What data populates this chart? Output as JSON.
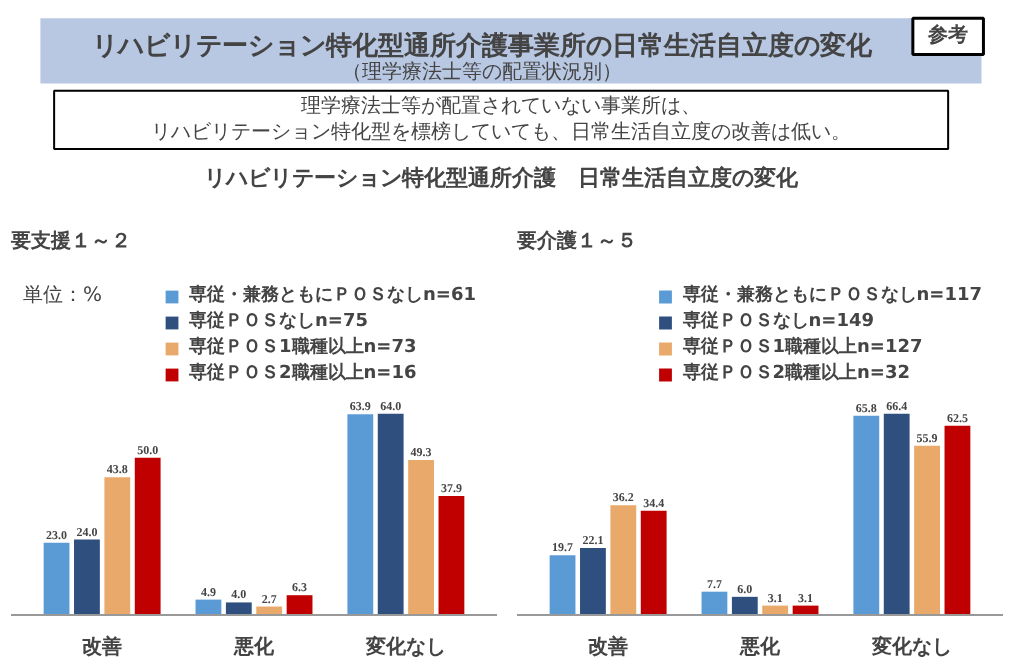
{
  "chart_data": [
    {
      "type": "other",
      "title": "リハビリテーション特化型通所介護事業所の日常生活自立度の変化",
      "subtitle": "（理学療法士等の配置状況別）",
      "annotations": [
        "参考",
        "理学療法士等が配置されていない事業所は、",
        "リハビリテーション特化型を標榜していても、日常生活自立度の改善は低い。",
        "リハビリテーション特化型通所介護　日常生活自立度の変化"
      ]
    },
    {
      "type": "bar",
      "title": "要支援１～２",
      "annotations": [
        "単位：%"
      ],
      "categories": [
        "改善",
        "悪化",
        "変化なし"
      ],
      "legend": "top",
      "series": [
        {
          "name": "専従・兼務ともにＰＯＳなしn=61",
          "color": "#5b9bd5",
          "values": [
            23.0,
            4.9,
            63.9
          ],
          "value_labels": [
            "23.0",
            "4.9",
            "63.9"
          ]
        },
        {
          "name": "専従ＰＯＳなしn=75",
          "color": "#2f4f7f",
          "values": [
            24.0,
            4.0,
            64.0
          ],
          "value_labels": [
            "24.0",
            "4.0",
            "64.0"
          ]
        },
        {
          "name": "専従ＰＯＳ1職種以上n=73",
          "color": "#e8a96a",
          "values": [
            43.8,
            2.7,
            49.3
          ],
          "value_labels": [
            "43.8",
            "2.7",
            "49.3"
          ]
        },
        {
          "name": "専従ＰＯＳ2職種以上n=16",
          "color": "#c00000",
          "values": [
            50.0,
            6.3,
            37.9
          ],
          "value_labels": [
            "50.0",
            "6.3",
            "37.9"
          ]
        }
      ]
    },
    {
      "type": "bar",
      "title": "要介護１～５",
      "categories": [
        "改善",
        "悪化",
        "変化なし"
      ],
      "legend": "top",
      "series": [
        {
          "name": "専従・兼務ともにＰＯＳなしn=117",
          "color": "#5b9bd5",
          "values": [
            19.7,
            7.7,
            65.8
          ],
          "value_labels": [
            "19.7",
            "7.7",
            "65.8"
          ]
        },
        {
          "name": "専従ＰＯＳなしn=149",
          "color": "#2f4f7f",
          "values": [
            22.1,
            6.0,
            66.4
          ],
          "value_labels": [
            "22.1",
            "6.0",
            "66.4"
          ]
        },
        {
          "name": "専従ＰＯＳ1職種以上n=127",
          "color": "#e8a96a",
          "values": [
            36.2,
            3.1,
            55.9
          ],
          "value_labels": [
            "36.2",
            "3.1",
            "55.9"
          ]
        },
        {
          "name": "専従ＰＯＳ2職種以上n=32",
          "color": "#c00000",
          "values": [
            34.4,
            3.1,
            62.5
          ],
          "value_labels": [
            "34.4",
            "3.1",
            "62.5"
          ]
        }
      ]
    }
  ]
}
